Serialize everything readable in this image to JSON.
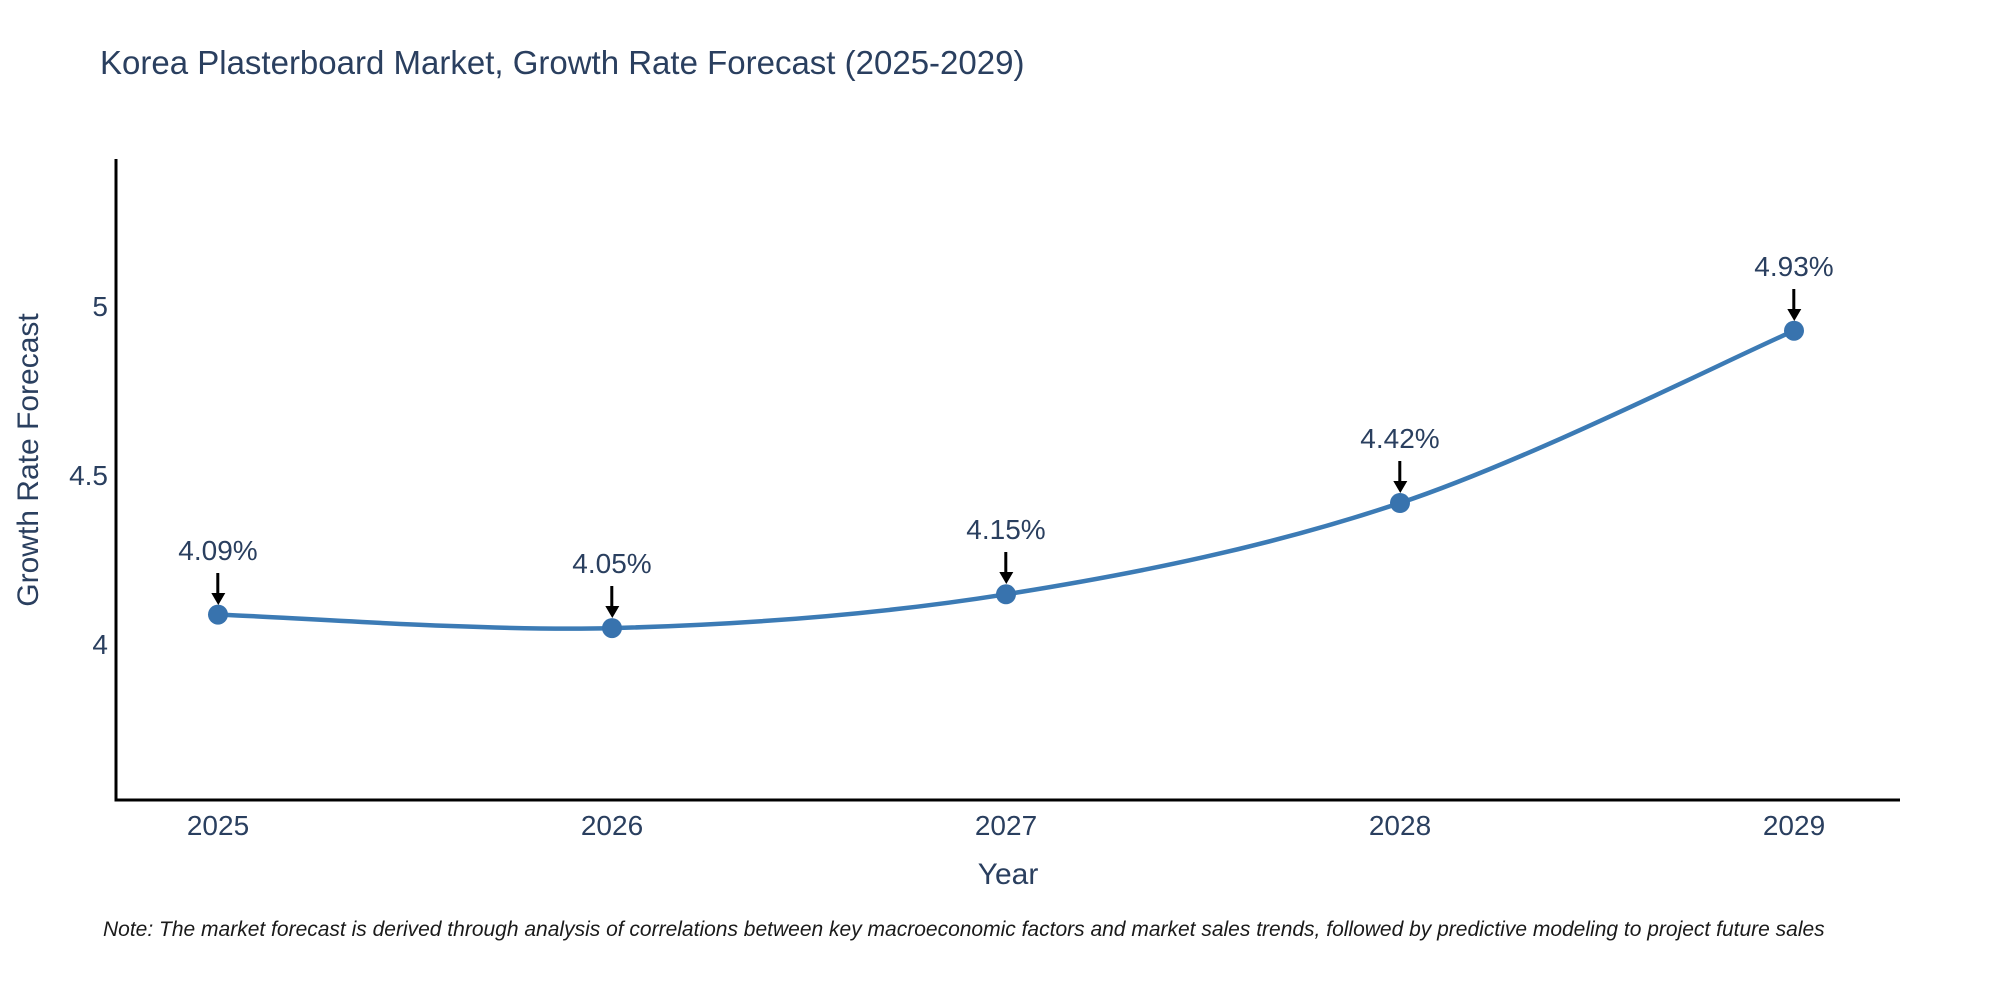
{
  "page": {
    "background": "#ffffff"
  },
  "chart_data": {
    "type": "line",
    "title": "Korea Plasterboard Market, Growth Rate Forecast (2025-2029)",
    "xlabel": "Year",
    "ylabel": "Growth Rate Forecast",
    "categories": [
      "2025",
      "2026",
      "2027",
      "2028",
      "2029"
    ],
    "series": [
      {
        "name": "Growth Rate Forecast",
        "values": [
          4.09,
          4.05,
          4.15,
          4.42,
          4.93
        ]
      }
    ],
    "point_labels": [
      "4.09%",
      "4.05%",
      "4.15%",
      "4.42%",
      "4.93%"
    ],
    "ytick_labels": [
      "4",
      "4.5",
      "5"
    ],
    "ytick_values": [
      4,
      4.5,
      5
    ],
    "ylim": [
      3.54,
      5.44
    ],
    "grid": false,
    "legend_position": "none",
    "line_smoothing": "spline",
    "colors": {
      "line": "#3c7bb5",
      "marker": "#3873ae",
      "arrow": "#000000",
      "axis": "#000000",
      "text": "#2a3f5f"
    },
    "note": "Note: The market forecast is derived through analysis of correlations between key macroeconomic factors and market sales trends, followed by predictive modeling to project future sales"
  }
}
